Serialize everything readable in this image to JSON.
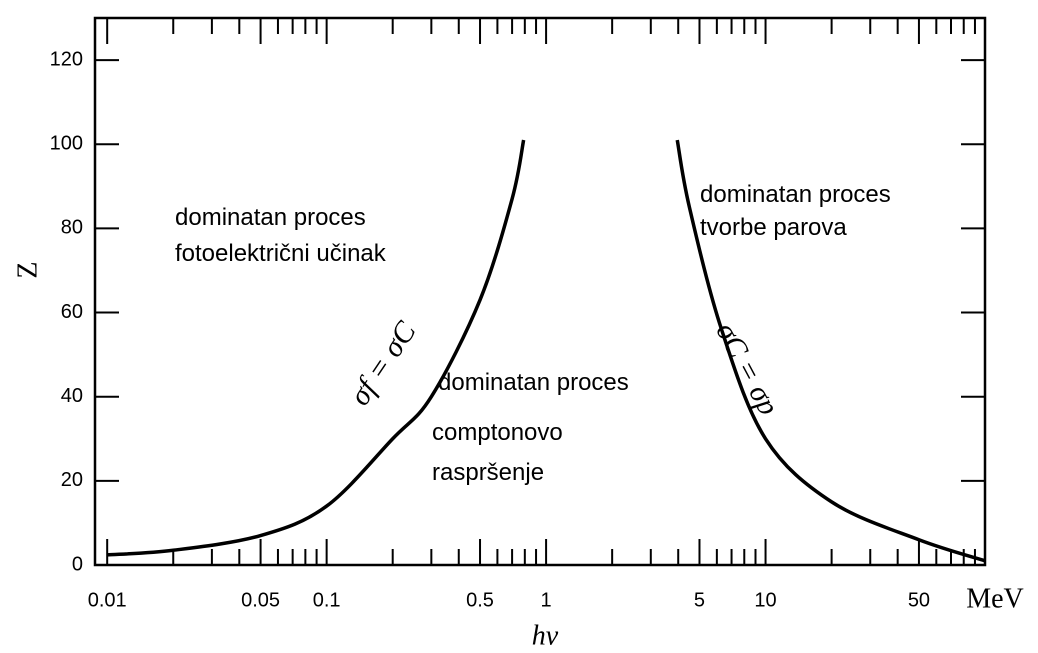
{
  "chart_data": {
    "type": "line",
    "xlabel": "hν",
    "xunit": "MeV",
    "ylabel": "Z",
    "xscale": "log",
    "xlim": [
      0.0088,
      100
    ],
    "ylim": [
      0,
      130
    ],
    "yticks": [
      0,
      20,
      40,
      60,
      80,
      100,
      120
    ],
    "xticks": [
      0.01,
      0.05,
      0.1,
      0.5,
      1,
      5,
      10,
      50
    ],
    "xminor_ticks": [
      0.02,
      0.03,
      0.04,
      0.06,
      0.07,
      0.08,
      0.09,
      0.2,
      0.3,
      0.4,
      0.6,
      0.7,
      0.8,
      0.9,
      2,
      3,
      4,
      6,
      7,
      8,
      9,
      20,
      30,
      40,
      60,
      70,
      80,
      90
    ],
    "color": "#000000",
    "series": [
      {
        "name": "σf = σC",
        "x": [
          0.01,
          0.02,
          0.05,
          0.1,
          0.2,
          0.3,
          0.5,
          0.7,
          0.79
        ],
        "values": [
          2.4,
          3.5,
          7,
          14,
          30,
          40,
          63,
          87,
          101
        ]
      },
      {
        "name": "σC = σp",
        "x": [
          3.96,
          4.5,
          6.3,
          10,
          20,
          50,
          100
        ],
        "values": [
          101,
          85,
          56,
          30,
          15,
          6,
          1
        ]
      }
    ],
    "annotations": [
      [
        "dominatan proces",
        "fotoelektrični učinak"
      ],
      [
        "dominatan proces",
        "comptonovo",
        "raspršenje"
      ],
      [
        "dominatan proces",
        "tvorbe parova"
      ]
    ]
  }
}
